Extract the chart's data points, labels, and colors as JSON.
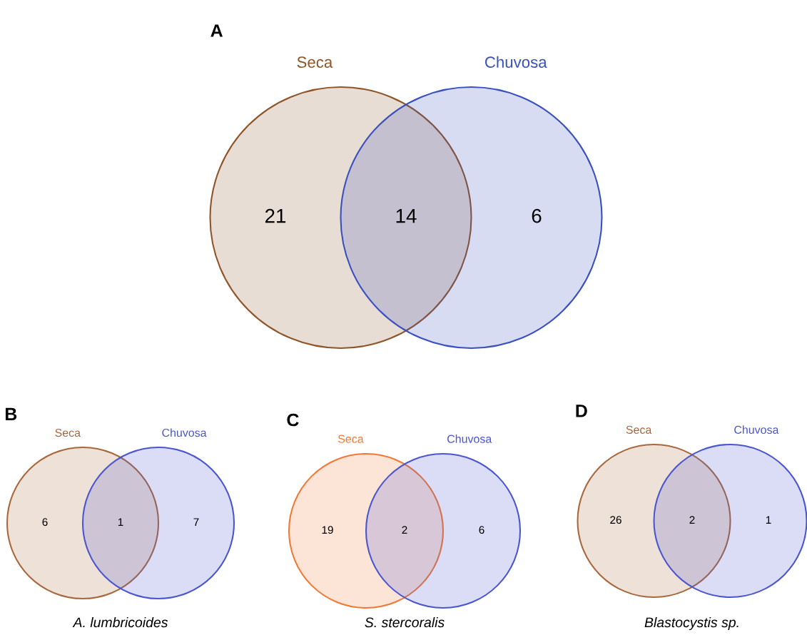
{
  "chart_data": [
    {
      "type": "other",
      "title": "A",
      "data_labels": true,
      "categories": [
        "Seca",
        null,
        "Chuvosa"
      ],
      "values": [
        21,
        14,
        6
      ],
      "colors": [
        "#8e5628",
        null,
        "#3a50bf"
      ]
    },
    {
      "type": "other",
      "title": "B",
      "data_labels": true,
      "xlabel": "A. lumbricoides",
      "categories": [
        "Seca",
        null,
        "Chuvosa"
      ],
      "values": [
        6,
        1,
        7
      ],
      "colors": [
        "#a8683e",
        null,
        "#4a55d0"
      ]
    },
    {
      "type": "other",
      "title": "C",
      "data_labels": true,
      "xlabel": "S. stercoralis",
      "categories": [
        "Seca",
        null,
        "Chuvosa"
      ],
      "values": [
        19,
        2,
        6
      ],
      "colors": [
        "#f07a35",
        null,
        "#4a55d0"
      ]
    },
    {
      "type": "other",
      "title": "D",
      "data_labels": true,
      "xlabel": "Blastocystis sp.",
      "categories": [
        "Seca",
        null,
        "Chuvosa"
      ],
      "values": [
        26,
        2,
        1
      ],
      "colors": [
        "#a8683e",
        null,
        "#4a55d0"
      ]
    }
  ]
}
